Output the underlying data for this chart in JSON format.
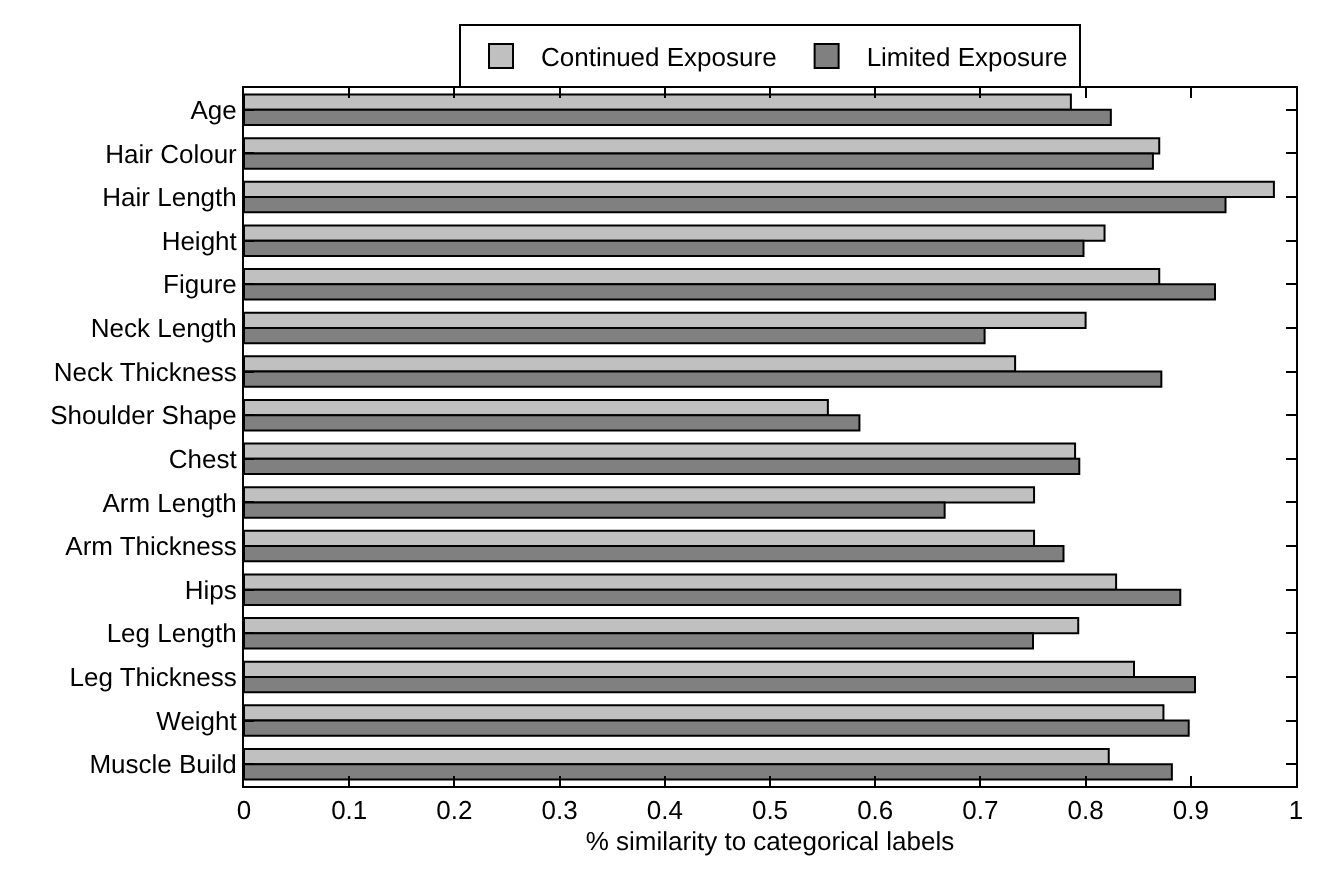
{
  "chart_data": {
    "type": "bar",
    "orientation": "horizontal",
    "xlabel": "% similarity to categorical labels",
    "categories": [
      "Age",
      "Hair Colour",
      "Hair Length",
      "Height",
      "Figure",
      "Neck Length",
      "Neck Thickness",
      "Shoulder Shape",
      "Chest",
      "Arm Length",
      "Arm Thickness",
      "Hips",
      "Leg Length",
      "Leg Thickness",
      "Weight",
      "Muscle Build"
    ],
    "series": [
      {
        "name": "Continued Exposure",
        "color": "#c0c0c0",
        "values": [
          0.786,
          0.87,
          0.979,
          0.818,
          0.87,
          0.8,
          0.733,
          0.555,
          0.79,
          0.751,
          0.751,
          0.829,
          0.793,
          0.846,
          0.874,
          0.822
        ]
      },
      {
        "name": "Limited Exposure",
        "color": "#808080",
        "values": [
          0.824,
          0.864,
          0.933,
          0.798,
          0.923,
          0.704,
          0.872,
          0.585,
          0.794,
          0.666,
          0.779,
          0.89,
          0.75,
          0.904,
          0.898,
          0.882
        ]
      }
    ],
    "xlim": [
      0,
      1
    ],
    "xticks": [
      0,
      0.1,
      0.2,
      0.3,
      0.4,
      0.5,
      0.6,
      0.7,
      0.8,
      0.9,
      1
    ],
    "grid": false,
    "legend": "top"
  }
}
